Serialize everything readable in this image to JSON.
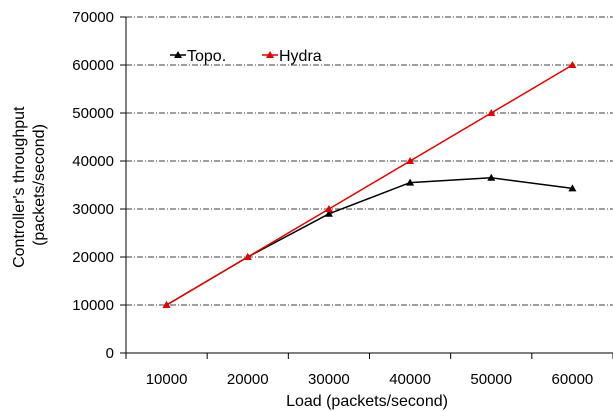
{
  "chart_data": {
    "type": "line",
    "x": [
      10000,
      20000,
      30000,
      40000,
      50000,
      60000
    ],
    "x_tick_labels": [
      "10000",
      "20000",
      "30000",
      "40000",
      "50000",
      "60000"
    ],
    "y_tick_labels": [
      "0",
      "10000",
      "20000",
      "30000",
      "40000",
      "50000",
      "60000",
      "70000"
    ],
    "ylim": [
      0,
      70000
    ],
    "xlabel": "Load (packets/second)",
    "ylabel": [
      "Controller's throughput",
      "(packets/second)"
    ],
    "grid": "horizontal dash-dot",
    "legend": "top-left",
    "series": [
      {
        "name": "Topo.",
        "color": "#000000",
        "marker": "triangle",
        "values": [
          10000,
          20000,
          29000,
          35500,
          36500,
          34300
        ]
      },
      {
        "name": "Hydra",
        "color": "#e00000",
        "marker": "triangle",
        "values": [
          10000,
          20000,
          30000,
          40000,
          50000,
          60000
        ]
      }
    ]
  }
}
